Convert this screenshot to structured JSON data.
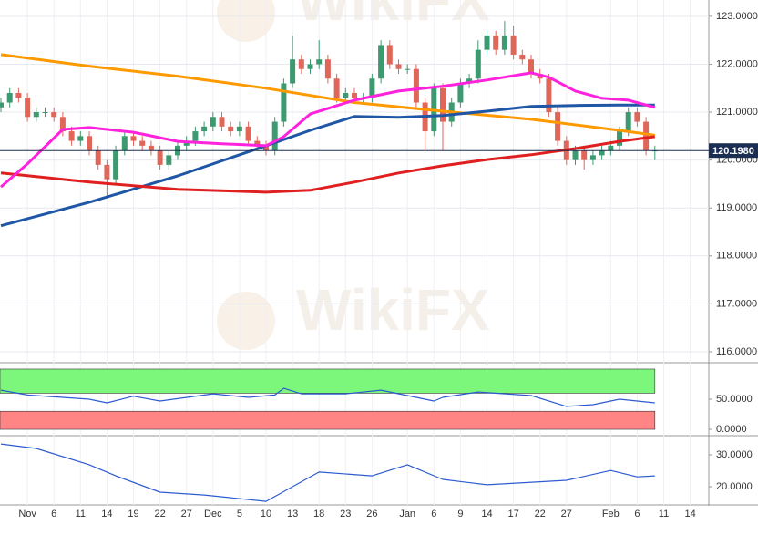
{
  "chart_data": [
    {
      "type": "candlestick",
      "categories": [
        null,
        null,
        null,
        "Nov",
        null,
        null,
        "6",
        null,
        null,
        "11",
        null,
        null,
        "14",
        null,
        null,
        "19",
        null,
        null,
        "22",
        null,
        null,
        "27",
        null,
        null,
        "Dec",
        null,
        null,
        "5",
        null,
        null,
        "10",
        null,
        null,
        "13",
        null,
        null,
        "18",
        null,
        null,
        "23",
        null,
        null,
        "26",
        null,
        null,
        null,
        "Jan",
        null,
        null,
        "6",
        null,
        null,
        "9",
        null,
        null,
        "14",
        null,
        null,
        "17",
        null,
        null,
        "22",
        null,
        null,
        "27",
        null,
        null,
        null,
        null,
        "Feb",
        null,
        null,
        "6",
        null,
        null,
        "11",
        null,
        null,
        "14"
      ],
      "open": [
        121.1,
        121.2,
        121.4,
        121.3,
        120.9,
        121.0,
        121.0,
        120.9,
        120.6,
        120.4,
        120.5,
        120.2,
        119.9,
        119.6,
        120.2,
        120.5,
        120.4,
        120.3,
        120.2,
        119.9,
        120.1,
        120.3,
        120.4,
        120.6,
        120.7,
        120.9,
        120.7,
        120.6,
        120.7,
        120.4,
        120.3,
        120.2,
        120.8,
        121.6,
        122.1,
        121.9,
        122.0,
        122.1,
        121.7,
        121.3,
        121.4,
        121.3,
        121.3,
        121.7,
        122.4,
        122.0,
        121.9,
        121.9,
        121.2,
        120.6,
        121.5,
        120.8,
        121.2,
        121.6,
        121.7,
        122.3,
        122.6,
        122.3,
        122.6,
        122.2,
        122.1,
        121.8,
        121.7,
        121.0,
        120.4,
        120.0,
        120.2,
        120.0,
        120.1,
        120.2,
        120.3,
        120.6,
        121.0,
        120.8,
        120.2,
        null,
        null,
        null,
        null
      ],
      "high": [
        121.3,
        121.5,
        121.5,
        121.4,
        121.1,
        121.1,
        121.1,
        121.0,
        120.7,
        120.6,
        120.6,
        120.3,
        120.0,
        120.3,
        120.6,
        120.6,
        120.5,
        120.4,
        120.3,
        120.2,
        120.4,
        120.5,
        120.7,
        120.8,
        121.0,
        121.0,
        120.8,
        120.8,
        120.8,
        120.5,
        120.4,
        120.9,
        121.7,
        122.6,
        122.2,
        122.1,
        122.5,
        122.2,
        121.8,
        121.5,
        121.5,
        121.4,
        121.8,
        122.5,
        122.5,
        122.1,
        122.0,
        122.0,
        121.3,
        121.6,
        121.6,
        121.3,
        121.7,
        121.8,
        122.5,
        122.7,
        122.7,
        122.9,
        122.8,
        122.3,
        122.2,
        121.9,
        121.8,
        121.1,
        120.5,
        120.3,
        120.3,
        120.2,
        120.3,
        120.4,
        120.7,
        121.1,
        121.1,
        120.9,
        120.3,
        null,
        null,
        null,
        null
      ],
      "low": [
        121.0,
        121.1,
        121.2,
        120.8,
        120.8,
        120.9,
        120.8,
        120.5,
        120.3,
        120.3,
        120.1,
        119.8,
        119.2,
        119.5,
        120.1,
        120.3,
        120.2,
        120.1,
        119.8,
        119.8,
        120.0,
        120.2,
        120.3,
        120.5,
        120.6,
        120.6,
        120.5,
        120.5,
        120.3,
        120.2,
        120.1,
        120.1,
        120.7,
        121.5,
        121.8,
        121.8,
        121.9,
        121.6,
        121.2,
        121.2,
        121.2,
        121.2,
        121.2,
        121.6,
        121.9,
        121.8,
        121.8,
        121.1,
        120.2,
        120.5,
        120.2,
        120.7,
        121.1,
        121.5,
        121.6,
        122.2,
        122.2,
        122.2,
        122.1,
        122.0,
        121.7,
        121.6,
        120.9,
        120.3,
        119.9,
        119.9,
        119.8,
        119.9,
        120.0,
        120.1,
        120.2,
        120.5,
        120.7,
        120.1,
        120.0,
        null,
        null,
        null,
        null
      ],
      "close": [
        121.2,
        121.4,
        121.3,
        120.9,
        121.0,
        121.0,
        120.9,
        120.6,
        120.4,
        120.5,
        120.2,
        119.9,
        119.6,
        120.2,
        120.5,
        120.4,
        120.3,
        120.2,
        119.9,
        120.1,
        120.3,
        120.4,
        120.6,
        120.7,
        120.9,
        120.7,
        120.6,
        120.7,
        120.4,
        120.3,
        120.2,
        120.8,
        121.6,
        122.1,
        121.9,
        122.0,
        122.1,
        121.7,
        121.3,
        121.4,
        121.3,
        121.3,
        121.7,
        122.4,
        122.0,
        121.9,
        121.9,
        121.2,
        120.6,
        121.5,
        120.8,
        121.2,
        121.6,
        121.7,
        122.3,
        122.6,
        122.3,
        122.6,
        122.2,
        122.1,
        121.8,
        121.7,
        121.0,
        120.4,
        120.0,
        120.2,
        120.0,
        120.1,
        120.2,
        120.3,
        120.6,
        121.0,
        120.8,
        120.2,
        120.2,
        null,
        null,
        null,
        null
      ],
      "up_color": "#3d9970",
      "down_color": "#e0665a",
      "ylim": [
        115.79,
        123.34
      ],
      "yticks": [
        {
          "value": 116,
          "label": "116.0000"
        },
        {
          "value": 117,
          "label": "117.0000"
        },
        {
          "value": 118,
          "label": "118.0000"
        },
        {
          "value": 119,
          "label": "119.0000"
        },
        {
          "value": 120,
          "label": "120.0000"
        },
        {
          "value": 121,
          "label": "121.0000"
        },
        {
          "value": 122,
          "label": "122.0000"
        },
        {
          "value": 123,
          "label": "123.0000"
        }
      ],
      "grid": true,
      "last_price": {
        "value": 120.198,
        "label": "120.1980"
      },
      "watermark": "WikiFX",
      "lines": [
        {
          "color": "#ff9900",
          "x": [
            0,
            10,
            20,
            30,
            40,
            50,
            60,
            70,
            74
          ],
          "values": [
            122.2,
            121.96,
            121.75,
            121.5,
            121.2,
            121.02,
            120.85,
            120.62,
            120.52
          ]
        },
        {
          "color": "#1f56a6",
          "x": [
            0,
            10,
            20,
            30,
            35,
            40,
            45,
            50,
            55,
            60,
            65,
            70,
            74
          ],
          "values": [
            118.63,
            119.12,
            119.67,
            120.3,
            120.62,
            120.91,
            120.89,
            120.93,
            121.02,
            121.12,
            121.14,
            121.15,
            121.15
          ]
        },
        {
          "color": "#e02020",
          "x": [
            0,
            10,
            20,
            30,
            35,
            40,
            45,
            50,
            55,
            60,
            65,
            70,
            74
          ],
          "values": [
            119.73,
            119.54,
            119.39,
            119.33,
            119.37,
            119.54,
            119.73,
            119.88,
            120.01,
            120.11,
            120.24,
            120.39,
            120.49
          ]
        },
        {
          "color": "#ff22dd",
          "x": [
            0,
            3,
            7,
            10,
            15,
            20,
            25,
            30,
            32,
            35,
            40,
            45,
            50,
            55,
            60,
            62,
            65,
            68,
            71,
            74
          ],
          "values": [
            119.44,
            119.92,
            120.64,
            120.68,
            120.58,
            120.39,
            120.34,
            120.3,
            120.49,
            120.96,
            121.25,
            121.44,
            121.54,
            121.67,
            121.82,
            121.73,
            121.44,
            121.29,
            121.25,
            121.1
          ]
        }
      ]
    },
    {
      "type": "line",
      "color": "#2d5bd1",
      "bands": [
        {
          "range": [
            60,
            100
          ],
          "color": "#7cf77c"
        },
        {
          "range": [
            0,
            30
          ],
          "color": "#ff8585"
        }
      ],
      "x": [
        0,
        3,
        10,
        12,
        15,
        18,
        24,
        28,
        31,
        32,
        34,
        39,
        43,
        46,
        49,
        50,
        54,
        60,
        64,
        67,
        70,
        74
      ],
      "values": [
        65,
        57,
        50,
        44,
        55,
        47,
        59,
        53,
        57,
        68,
        59,
        59,
        65,
        56,
        47,
        53,
        62,
        56,
        38,
        41,
        50,
        44
      ],
      "ylim": [
        -6,
        103
      ],
      "yticks": [
        {
          "value": 0,
          "label": "0.0000"
        },
        {
          "value": 50,
          "label": "50.0000"
        }
      ]
    },
    {
      "type": "line",
      "color": "#2d5bd1",
      "x": [
        0,
        4,
        10,
        13,
        18,
        23,
        30,
        36,
        42,
        46,
        50,
        55,
        64,
        69,
        72,
        74
      ],
      "values": [
        33.4,
        32,
        26.9,
        23.4,
        18.3,
        17.4,
        15.4,
        24.6,
        23.4,
        26.9,
        22.3,
        20.6,
        22,
        25.1,
        23.1,
        23.4
      ],
      "ylim": [
        14.86,
        34.86
      ],
      "yticks": [
        {
          "value": 20,
          "label": "20.0000"
        },
        {
          "value": 30,
          "label": "30.0000"
        }
      ]
    }
  ]
}
